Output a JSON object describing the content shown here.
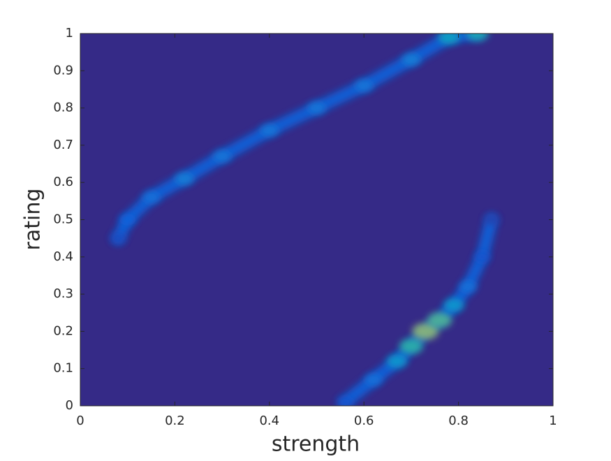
{
  "chart_data": {
    "type": "density",
    "xlabel": "strength",
    "ylabel": "rating",
    "xlim": [
      0,
      1
    ],
    "ylim": [
      0,
      1
    ],
    "xticks": [
      0,
      0.2,
      0.4,
      0.6,
      0.8,
      1
    ],
    "yticks": [
      0,
      0.1,
      0.2,
      0.3,
      0.4,
      0.5,
      0.6,
      0.7,
      0.8,
      0.9,
      1
    ],
    "background": "#352a87",
    "colormap": [
      "#352a87",
      "#0f5cdd",
      "#1481d6",
      "#06a4ca",
      "#2eb7a4",
      "#87bf77",
      "#d1bb59",
      "#fec832",
      "#f9fb0e"
    ],
    "series": [
      {
        "x": [
          0.08,
          0.1,
          0.15,
          0.22,
          0.3,
          0.4,
          0.5,
          0.6,
          0.7,
          0.78,
          0.84
        ],
        "values": [
          0.45,
          0.5,
          0.56,
          0.61,
          0.67,
          0.74,
          0.8,
          0.86,
          0.93,
          0.99,
          1.0
        ],
        "intensity": [
          0.08,
          0.15,
          0.2,
          0.25,
          0.22,
          0.22,
          0.22,
          0.22,
          0.25,
          0.4,
          0.45
        ]
      },
      {
        "x": [
          0.56,
          0.62,
          0.67,
          0.7,
          0.73,
          0.76,
          0.79,
          0.82,
          0.85,
          0.87
        ],
        "values": [
          0.01,
          0.07,
          0.12,
          0.16,
          0.2,
          0.23,
          0.27,
          0.32,
          0.4,
          0.5
        ],
        "intensity": [
          0.1,
          0.2,
          0.35,
          0.5,
          0.65,
          0.55,
          0.35,
          0.2,
          0.1,
          0.05
        ]
      }
    ]
  }
}
